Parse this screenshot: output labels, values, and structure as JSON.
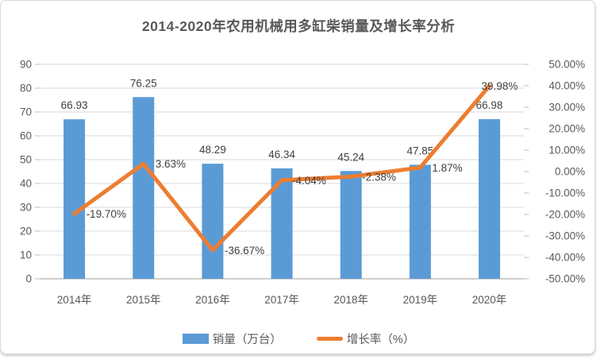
{
  "chart_data": {
    "type": "combo_bar_line",
    "title": "2014-2020年农用机械用多缸柴销量及增长率分析",
    "categories": [
      "2014年",
      "2015年",
      "2016年",
      "2017年",
      "2018年",
      "2019年",
      "2020年"
    ],
    "series": [
      {
        "name": "销量（万台）",
        "type": "bar",
        "axis": "left",
        "color": "#5B9BD5",
        "values": [
          66.93,
          76.25,
          48.29,
          46.34,
          45.24,
          47.85,
          66.98
        ],
        "labels": [
          "66.93",
          "76.25",
          "48.29",
          "46.34",
          "45.24",
          "47.85",
          "66.98"
        ]
      },
      {
        "name": "增长率（%）",
        "type": "line",
        "axis": "right",
        "color": "#ED7D31",
        "values": [
          -19.7,
          3.63,
          -36.67,
          -4.04,
          -2.38,
          1.87,
          39.98
        ],
        "labels": [
          "-19.70%",
          "3.63%",
          "-36.67%",
          "-4.04%",
          "-2.38%",
          "1.87%",
          "39.98%"
        ],
        "label_dx": [
          15,
          15,
          15,
          13,
          14,
          15,
          -10
        ]
      }
    ],
    "left_axis": {
      "min": 0,
      "max": 90,
      "step": 10,
      "tick_labels": [
        "90",
        "80",
        "70",
        "60",
        "50",
        "40",
        "30",
        "20",
        "10",
        "0"
      ]
    },
    "right_axis": {
      "min": -50,
      "max": 50,
      "step": 10,
      "tick_labels": [
        "50.00%",
        "40.00%",
        "30.00%",
        "20.00%",
        "10.00%",
        "0.00%",
        "-10.00%",
        "-20.00%",
        "-30.00%",
        "-40.00%",
        "-50.00%"
      ]
    },
    "grid": true,
    "legend_position": "bottom",
    "colors": {
      "gridline": "#D9D9D9",
      "axis_line": "#BDBDBD",
      "tick": "#BFBFBF",
      "axis_text": "#595959",
      "data_label_text": "#404040",
      "title_text": "#595959"
    }
  }
}
